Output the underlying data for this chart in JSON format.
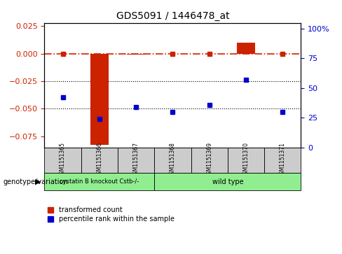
{
  "title": "GDS5091 / 1446478_at",
  "samples": [
    "GSM1151365",
    "GSM1151366",
    "GSM1151367",
    "GSM1151368",
    "GSM1151369",
    "GSM1151370",
    "GSM1151371"
  ],
  "red_values": [
    0.0,
    -0.083,
    -0.001,
    0.0,
    0.0,
    0.01,
    0.0
  ],
  "blue_values_pct": [
    42,
    24,
    34,
    30,
    36,
    57,
    30
  ],
  "ylim_left": [
    -0.085,
    0.028
  ],
  "ylim_right": [
    0,
    105
  ],
  "yticks_left": [
    0.025,
    0.0,
    -0.025,
    -0.05,
    -0.075
  ],
  "yticks_right": [
    100,
    75,
    50,
    25,
    0
  ],
  "hline_y": 0.0,
  "dotted_lines": [
    -0.025,
    -0.05
  ],
  "group1_label": "cystatin B knockout Cstb-/-",
  "group2_label": "wild type",
  "group1_count": 3,
  "group2_count": 4,
  "group1_color": "#90EE90",
  "group2_color": "#90EE90",
  "bar_color": "#CC2200",
  "dot_color": "#0000CC",
  "bg_color": "#ffffff",
  "legend_label1": "transformed count",
  "legend_label2": "percentile rank within the sample",
  "genotype_label": "genotype/variation",
  "tick_color_left": "#CC2200",
  "tick_color_right": "#0000CC",
  "hline_color": "#CC2200",
  "hline_style": "-.",
  "bar_width": 0.5,
  "sample_box_color": "#cccccc"
}
